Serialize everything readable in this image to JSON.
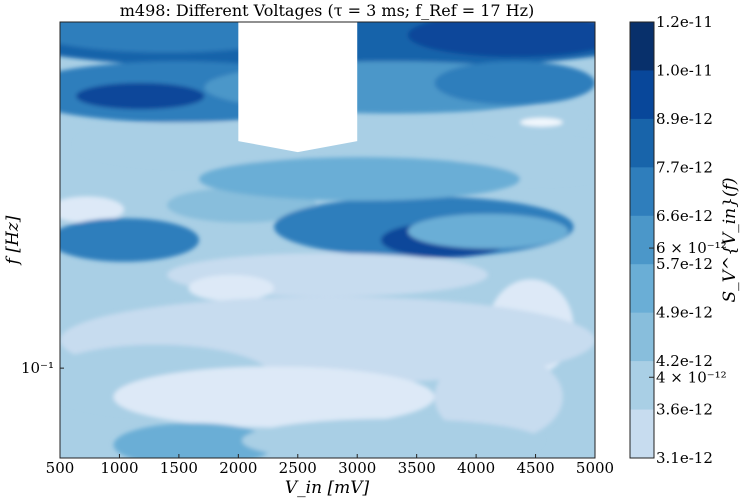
{
  "chart_data": {
    "type": "heatmap",
    "title": "m498: Different Voltages (τ = 3 ms; f_Ref = 17 Hz)",
    "xlabel": "V_in [mV]",
    "ylabel": "f [Hz]",
    "colorbar_label": "S_V^{V_in}(f)",
    "x_ticks": [
      "500",
      "1000",
      "1500",
      "2000",
      "2500",
      "3000",
      "3500",
      "4000",
      "4500",
      "5000"
    ],
    "xlim": [
      500,
      5000
    ],
    "y_scale": "log",
    "y_ticks": [
      {
        "value": 0.1,
        "label": "10⁻¹"
      }
    ],
    "ylim": [
      0.055,
      1.0
    ],
    "colorbar_levels": [
      "1.2e-11",
      "1.0e-11",
      "8.9e-12",
      "7.7e-12",
      "6.6e-12",
      "5.7e-12",
      "4.9e-12",
      "4.2e-12",
      "3.6e-12",
      "3.1e-12"
    ],
    "colorbar_extra_ticks": [
      {
        "value": 6e-12,
        "label": "6 × 10⁻¹²"
      },
      {
        "value": 4e-12,
        "label": "4 × 10⁻¹²"
      }
    ],
    "colormap": [
      "#f1f7fd",
      "#dde9f7",
      "#c7dcef",
      "#a9cfe5",
      "#88bedc",
      "#6aaed6",
      "#4b97c9",
      "#2f7ebc",
      "#1864aa",
      "#08479a",
      "#08306b"
    ],
    "masked_region": {
      "x": [
        2000,
        3000
      ],
      "y_top": 1.0
    },
    "grid": false,
    "legend": "none"
  }
}
